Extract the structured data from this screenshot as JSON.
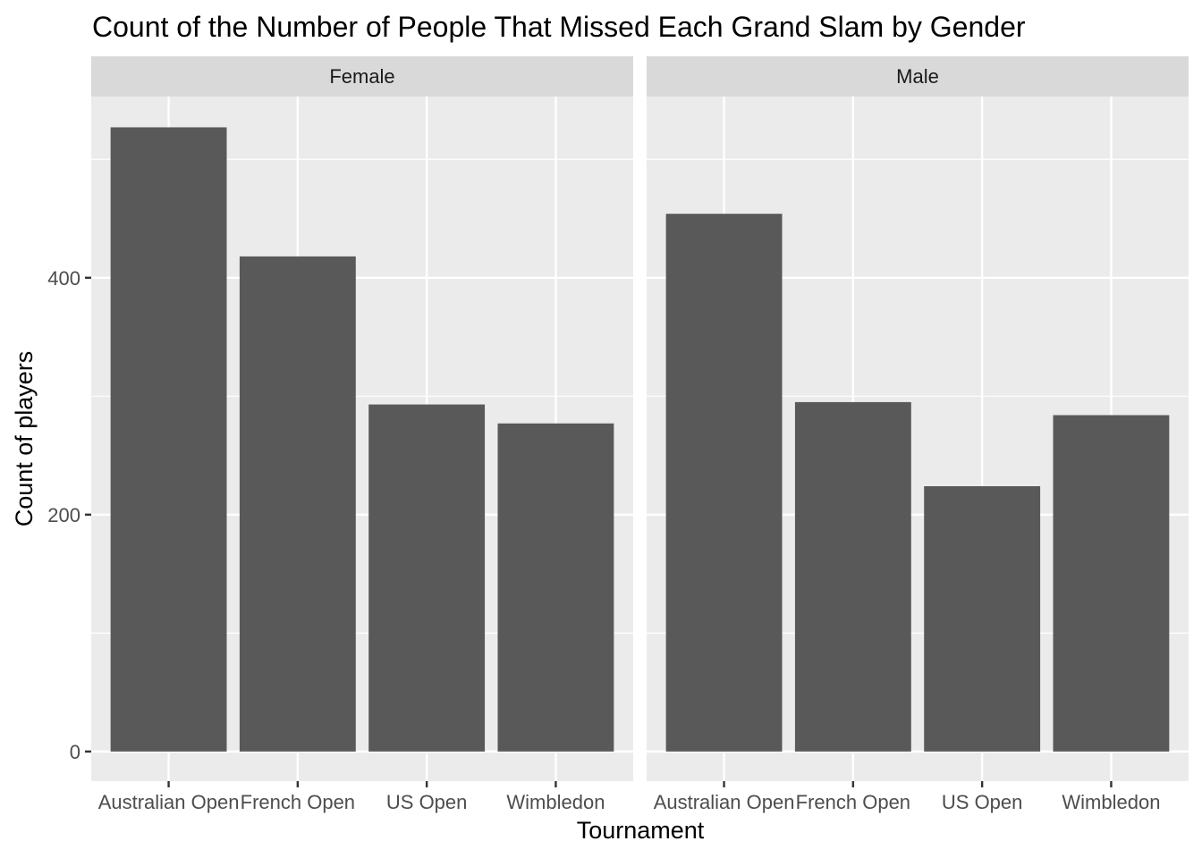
{
  "chart_data": {
    "type": "bar",
    "title": "Count of the Number of People That Missed Each Grand Slam by Gender",
    "xlabel": "Tournament",
    "ylabel": "Count of players",
    "categories": [
      "Australian Open",
      "French Open",
      "US Open",
      "Wimbledon"
    ],
    "yticks": [
      0,
      200,
      400
    ],
    "ylim": [
      -25,
      553
    ],
    "grid": true,
    "bar_color": "#595959",
    "panel_background": "#ebebeb",
    "strip_background": "#d9d9d9",
    "gridline_color": "#ffffff",
    "facets": [
      {
        "name": "Female",
        "values": [
          527,
          418,
          293,
          277
        ]
      },
      {
        "name": "Male",
        "values": [
          454,
          295,
          224,
          284
        ]
      }
    ]
  }
}
